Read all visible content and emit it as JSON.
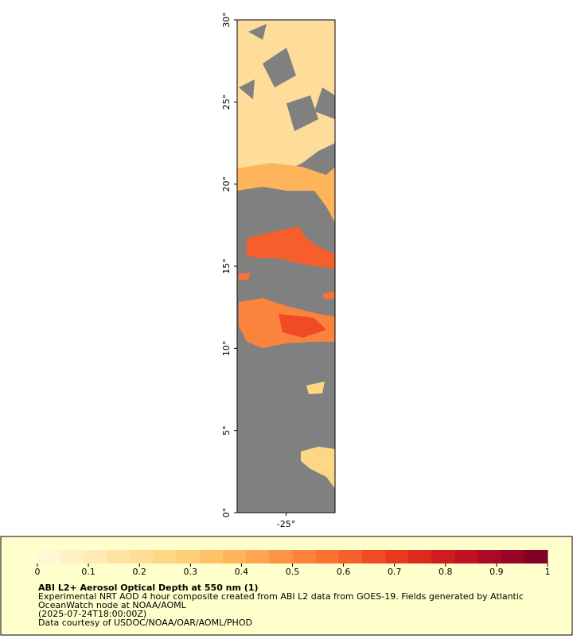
{
  "map": {
    "lat_ticks": [
      {
        "value": 0,
        "label": "0°"
      },
      {
        "value": 5,
        "label": "5°"
      },
      {
        "value": 10,
        "label": "10°"
      },
      {
        "value": 15,
        "label": "15°"
      },
      {
        "value": 20,
        "label": "20°"
      },
      {
        "value": 25,
        "label": "25°"
      },
      {
        "value": 30,
        "label": "30°"
      }
    ],
    "lat_range": [
      0,
      30
    ],
    "lon_range": [
      -28,
      -22
    ],
    "lon_ticks": [
      {
        "value": -25,
        "label": "-25°"
      }
    ]
  },
  "colorbar": {
    "range": [
      0,
      1
    ],
    "ticks": [
      0,
      0.1,
      0.2,
      0.3,
      0.4,
      0.5,
      0.6,
      0.7,
      0.8,
      0.9,
      1
    ],
    "colors": [
      "#fff7d6",
      "#fff1c4",
      "#ffebb3",
      "#fee4a3",
      "#fede95",
      "#fed785",
      "#fecf76",
      "#fec268",
      "#fdb45b",
      "#fda54f",
      "#fc9445",
      "#fc833c",
      "#fb7233",
      "#f65f2c",
      "#ef4b25",
      "#e7391f",
      "#dc2a1d",
      "#cf1c1e",
      "#bf1222",
      "#ab0a25",
      "#970526",
      "#800026"
    ]
  },
  "info": {
    "title": "ABI L2+ Aerosol Optical Depth at 550 nm (1)",
    "lines": [
      "Experimental NRT AOD 4 hour composite created from ABI L2 data from GOES-19. Fields generated by Atlantic",
      "OceanWatch node at NOAA/AOML",
      "(2025-07-24T18:00:00Z)",
      "Data courtesy of USDOC/NOAA/OAR/AOML/PHOD"
    ]
  }
}
